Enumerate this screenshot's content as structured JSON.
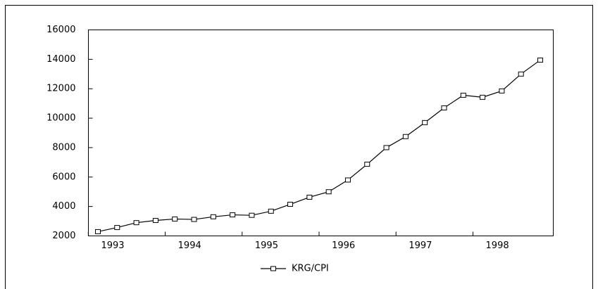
{
  "chart_data": {
    "type": "line",
    "categories": [
      "1993",
      null,
      null,
      null,
      "1994",
      null,
      null,
      null,
      "1995",
      null,
      null,
      null,
      "1996",
      null,
      null,
      null,
      "1997",
      null,
      null,
      null,
      "1998",
      null,
      null,
      null
    ],
    "series": [
      {
        "name": "KRG/CPI",
        "color": "#000000",
        "values": [
          2290,
          2570,
          2900,
          3050,
          3150,
          3120,
          3300,
          3430,
          3400,
          3680,
          4150,
          4630,
          5000,
          5800,
          6870,
          8000,
          8750,
          9700,
          10700,
          11560,
          11420,
          11850,
          13000,
          13950
        ]
      }
    ],
    "ylim": [
      2000,
      16000
    ],
    "yticks": [
      2000,
      4000,
      6000,
      8000,
      10000,
      12000,
      14000,
      16000
    ],
    "legend": "bottom"
  }
}
